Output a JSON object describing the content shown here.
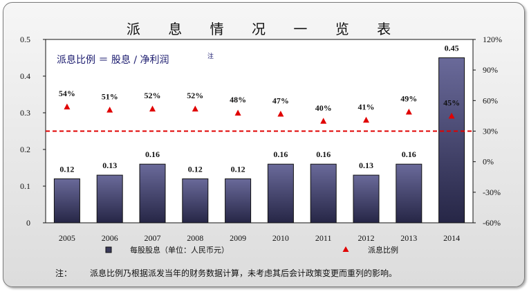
{
  "chart_data": {
    "type": "bar",
    "title": "派 息 情 况 一 览 表",
    "categories": [
      "2005",
      "2006",
      "2007",
      "2008",
      "2009",
      "2010",
      "2011",
      "2012",
      "2013",
      "2014"
    ],
    "series": [
      {
        "name": "每股股息（单位：人民币元）",
        "type": "bar",
        "axis": "left",
        "values": [
          0.12,
          0.13,
          0.16,
          0.12,
          0.12,
          0.16,
          0.16,
          0.13,
          0.16,
          0.45
        ],
        "value_labels": [
          "0.12",
          "0.13",
          "0.16",
          "0.12",
          "0.12",
          "0.16",
          "0.16",
          "0.13",
          "0.16",
          "0.45"
        ]
      },
      {
        "name": "派息比例",
        "type": "scatter",
        "marker": "triangle",
        "axis": "right",
        "values": [
          54,
          51,
          52,
          52,
          48,
          47,
          40,
          41,
          49,
          45
        ],
        "value_labels": [
          "54%",
          "51%",
          "52%",
          "52%",
          "48%",
          "47%",
          "40%",
          "41%",
          "49%",
          "45%"
        ]
      }
    ],
    "left_axis": {
      "range": [
        0,
        0.5
      ],
      "ticks": [
        "0",
        "0.1",
        "0.2",
        "0.3",
        "0.4",
        "0.5"
      ]
    },
    "right_axis": {
      "range": [
        -60,
        120
      ],
      "ticks": [
        "-60%",
        "-30%",
        "0%",
        "30%",
        "60%",
        "90%",
        "120%"
      ]
    },
    "reference_line": {
      "axis": "right",
      "value": 30,
      "style": "dashed",
      "color": "#e00000"
    },
    "annotation": {
      "text": "派息比例 ＝ 股息 / 净利润",
      "superscript": "注"
    },
    "legend_position": "bottom",
    "grid": false
  },
  "footnote": {
    "label": "注：",
    "text": "派息比例乃根据派发当年的财务数据计算，未考虑其后会计政策变更而重列的影响。"
  },
  "colors": {
    "bar_top": "#6a6a9a",
    "bar_bottom": "#262646",
    "triangle": "#e00000",
    "plot_bg": "#ffffff",
    "formula_text": "#1a1a6e"
  }
}
